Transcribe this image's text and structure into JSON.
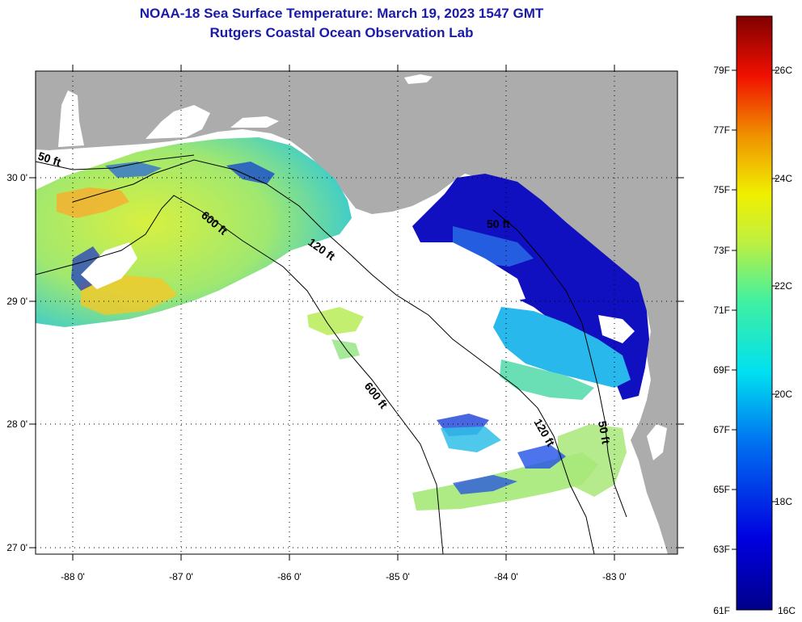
{
  "title": {
    "line1": "NOAA-18 Sea Surface Temperature:  March 19, 2023 1547 GMT",
    "line2": "Rutgers Coastal Ocean Observation Lab"
  },
  "colors": {
    "land": "#acacac",
    "title": "#1a1aa8",
    "cold": "#1010c0",
    "cool": "#27b4ec",
    "mid": "#40d8c0",
    "warm": "#c8f050",
    "warmer": "#f4f020",
    "hot": "#f4a020"
  },
  "axes": {
    "longitude_ticks": [
      "-88 0'",
      "-87 0'",
      "-86 0'",
      "-85 0'",
      "-84 0'",
      "-83 0'"
    ],
    "latitude_ticks": [
      "30 0'",
      "29 0'",
      "28 0'",
      "27 0'"
    ]
  },
  "contours": {
    "labels": [
      "50 ft",
      "600 ft",
      "120 ft",
      "50 ft",
      "600 ft",
      "120 ft",
      "50 ft"
    ]
  },
  "colorbar": {
    "fahrenheit_labels": [
      "79F",
      "77F",
      "75F",
      "73F",
      "71F",
      "69F",
      "67F",
      "65F",
      "63F",
      "61F"
    ],
    "celsius_labels": [
      "26C",
      "24C",
      "22C",
      "20C",
      "18C",
      "16C"
    ],
    "range_celsius": [
      16,
      27
    ]
  }
}
